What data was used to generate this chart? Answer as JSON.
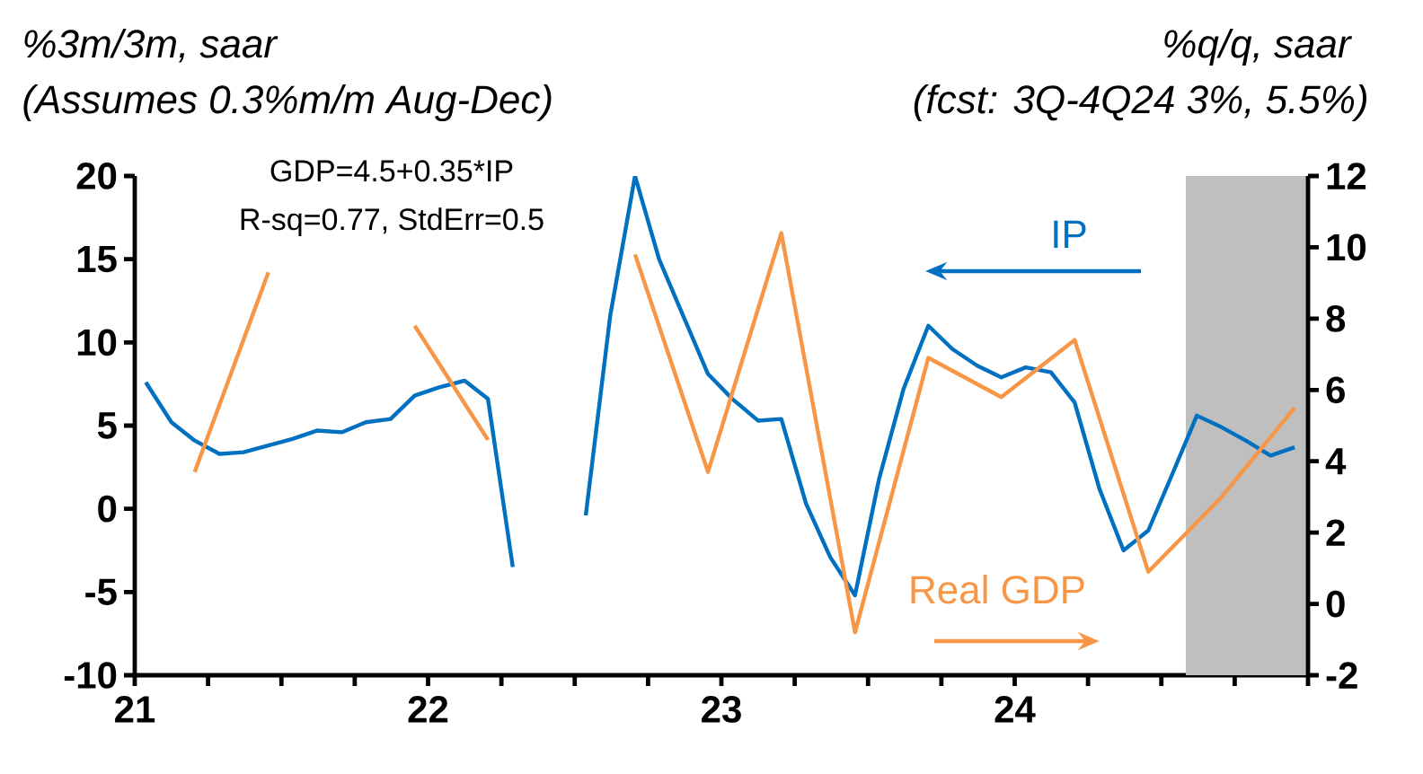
{
  "chart_data": {
    "type": "line",
    "ylabel": "%3m/3m, saar",
    "y2label": "%q/q, saar",
    "annotations": [
      "(Assumes 0.3%m/m Aug-Dec)",
      "(fcst: 3Q-4Q24 3%, 5.5%)",
      "GDP=4.5+0.35*IP",
      "R-sq=0.77, StdErr=0.5"
    ],
    "xlim": [
      "2021-01",
      "2025-01"
    ],
    "xticks": [
      {
        "value": "2021-01",
        "label": "21"
      },
      {
        "value": "2021-04",
        "label": null
      },
      {
        "value": "2021-07",
        "label": null
      },
      {
        "value": "2021-10",
        "label": null
      },
      {
        "value": "2022-01",
        "label": "22"
      },
      {
        "value": "2022-04",
        "label": null
      },
      {
        "value": "2022-07",
        "label": null
      },
      {
        "value": "2022-10",
        "label": null
      },
      {
        "value": "2023-01",
        "label": "23"
      },
      {
        "value": "2023-04",
        "label": null
      },
      {
        "value": "2023-07",
        "label": null
      },
      {
        "value": "2023-10",
        "label": null
      },
      {
        "value": "2024-01",
        "label": "24"
      },
      {
        "value": "2024-04",
        "label": null
      },
      {
        "value": "2024-07",
        "label": null
      },
      {
        "value": "2024-10",
        "label": null
      },
      {
        "value": "2025-01",
        "label": null
      }
    ],
    "ylim": [
      -10,
      20
    ],
    "yticks": [
      -10,
      -5,
      0,
      5,
      10,
      15,
      20
    ],
    "y2lim": [
      -2,
      12
    ],
    "y2ticks": [
      -2,
      0,
      2,
      4,
      6,
      8,
      10,
      12
    ],
    "marker": "none",
    "line_style": "solid",
    "bands": [
      {
        "axis": "x",
        "from": "2024-08",
        "to": "2025-01",
        "color": "#bfbfbf"
      }
    ],
    "series": [
      {
        "name": "IP",
        "color": "#0070c0",
        "axis": "y",
        "x": [
          "2021-01-15",
          "2021-02-15",
          "2021-03-15",
          "2021-04-15",
          "2021-05-15",
          "2021-06-15",
          "2021-07-15",
          "2021-08-15",
          "2021-09-15",
          "2021-10-15",
          "2021-11-15",
          "2021-12-15",
          "2022-01-15",
          "2022-02-15",
          "2022-03-15",
          "2022-04-15",
          "2022-05-15",
          "2022-06-15",
          "2022-07-15",
          "2022-08-15",
          "2022-09-15",
          "2022-10-15",
          "2022-11-15",
          "2022-12-15",
          "2023-01-15",
          "2023-02-15",
          "2023-03-15",
          "2023-04-15",
          "2023-05-15",
          "2023-06-15",
          "2023-07-15",
          "2023-08-15",
          "2023-09-15",
          "2023-10-15",
          "2023-11-15",
          "2023-12-15",
          "2024-01-15",
          "2024-02-15",
          "2024-03-15",
          "2024-04-15",
          "2024-05-15",
          "2024-06-15",
          "2024-07-15",
          "2024-08-15",
          "2024-09-15",
          "2024-10-15",
          "2024-11-15",
          "2024-12-15"
        ],
        "values": [
          7.6,
          5.2,
          4.1,
          3.3,
          3.4,
          3.8,
          4.2,
          4.7,
          4.6,
          5.2,
          5.4,
          6.8,
          7.3,
          7.7,
          6.6,
          -3.5,
          null,
          null,
          -0.4,
          11.6,
          20,
          15.0,
          11.5,
          8.1,
          6.6,
          5.3,
          5.4,
          0.3,
          -2.9,
          -5.2,
          1.8,
          7.2,
          11.0,
          9.6,
          8.6,
          7.9,
          8.5,
          8.2,
          6.4,
          1.2,
          -2.5,
          -1.3,
          2.1,
          5.6,
          4.9,
          4.1,
          3.2,
          3.7
        ]
      },
      {
        "name": "Real GDP",
        "color": "#f79646",
        "axis": "y2",
        "x": [
          "2021-03-15",
          "2021-06-15",
          "2021-09-15",
          "2021-12-15",
          "2022-03-15",
          "2022-06-15",
          "2022-09-15",
          "2022-12-15",
          "2023-03-15",
          "2023-06-15",
          "2023-09-15",
          "2023-12-15",
          "2024-03-15",
          "2024-06-15",
          "2024-09-15",
          "2024-12-15"
        ],
        "values": [
          3.7,
          9.3,
          null,
          7.8,
          4.6,
          null,
          9.8,
          3.7,
          10.4,
          -0.8,
          6.9,
          5.8,
          7.4,
          0.9,
          3.0,
          5.5
        ]
      }
    ]
  }
}
